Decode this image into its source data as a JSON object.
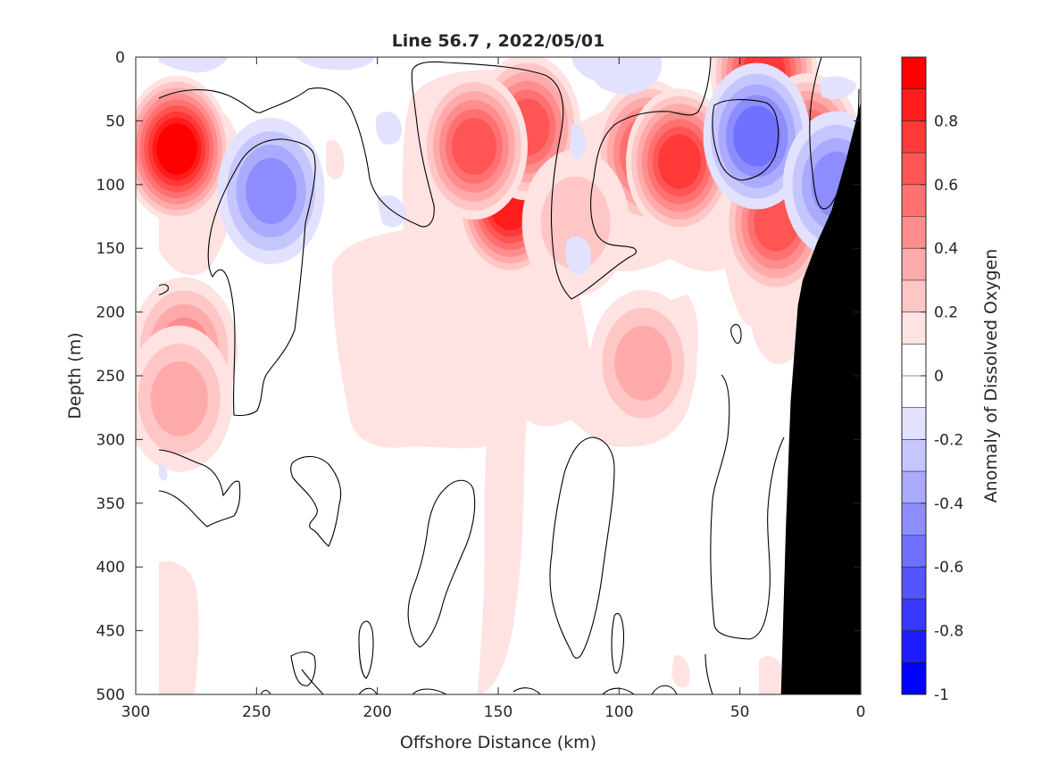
{
  "chart_data": {
    "type": "contour",
    "title": "Line 56.7 , 2022/05/01",
    "xlabel": "Offshore Distance (km)",
    "ylabel": "Depth (m)",
    "xlim": [
      300,
      0
    ],
    "ylim": [
      0,
      500
    ],
    "x_reversed": true,
    "y_reversed": true,
    "x_ticks": [
      300,
      250,
      200,
      150,
      100,
      50,
      0
    ],
    "y_ticks": [
      0,
      50,
      100,
      150,
      200,
      250,
      300,
      350,
      400,
      450,
      500
    ],
    "colorbar": {
      "label": "Anomaly of Dissolved Oxygen",
      "range": [
        -1,
        1
      ],
      "ticks": [
        0.8,
        0.6,
        0.4,
        0.2,
        0,
        -0.2,
        -0.4,
        -0.6,
        -0.8,
        -1
      ],
      "tick_labels": [
        "0.8",
        "0.6",
        "0.4",
        "0.2",
        "0",
        "-0.2",
        "-0.4",
        "-0.6",
        "-0.8",
        "-1"
      ],
      "levels": [
        {
          "from": 0.9,
          "to": 1.0,
          "color": "#ff0000"
        },
        {
          "from": 0.8,
          "to": 0.9,
          "color": "#ff1c1c"
        },
        {
          "from": 0.7,
          "to": 0.8,
          "color": "#ff3838"
        },
        {
          "from": 0.6,
          "to": 0.7,
          "color": "#ff5555"
        },
        {
          "from": 0.5,
          "to": 0.6,
          "color": "#ff7171"
        },
        {
          "from": 0.4,
          "to": 0.5,
          "color": "#ff8d8d"
        },
        {
          "from": 0.3,
          "to": 0.4,
          "color": "#ffaaaa"
        },
        {
          "from": 0.2,
          "to": 0.3,
          "color": "#ffc6c6"
        },
        {
          "from": 0.1,
          "to": 0.2,
          "color": "#ffe2e2"
        },
        {
          "from": 0.0,
          "to": 0.1,
          "color": "#ffffff"
        },
        {
          "from": -0.1,
          "to": 0.0,
          "color": "#ffffff"
        },
        {
          "from": -0.2,
          "to": -0.1,
          "color": "#e2e2ff"
        },
        {
          "from": -0.3,
          "to": -0.2,
          "color": "#c6c6ff"
        },
        {
          "from": -0.4,
          "to": -0.3,
          "color": "#aaaaff"
        },
        {
          "from": -0.5,
          "to": -0.4,
          "color": "#8d8dff"
        },
        {
          "from": -0.6,
          "to": -0.5,
          "color": "#7171ff"
        },
        {
          "from": -0.7,
          "to": -0.6,
          "color": "#5555ff"
        },
        {
          "from": -0.8,
          "to": -0.7,
          "color": "#3838ff"
        },
        {
          "from": -0.9,
          "to": -0.8,
          "color": "#1c1cff"
        },
        {
          "from": -1.0,
          "to": -0.9,
          "color": "#0000ff"
        }
      ]
    },
    "data_extent": {
      "x": [
        290,
        0
      ],
      "y": [
        0,
        500
      ]
    },
    "features": [
      {
        "type": "anomaly",
        "x": 283,
        "y": 72,
        "value": 0.9
      },
      {
        "type": "anomaly",
        "x": 280,
        "y": 230,
        "value": 0.35
      },
      {
        "type": "anomaly",
        "x": 282,
        "y": 268,
        "value": 0.32
      },
      {
        "type": "anomaly",
        "x": 244,
        "y": 105,
        "value": -0.4
      },
      {
        "type": "anomaly",
        "x": 145,
        "y": 115,
        "value": 0.75
      },
      {
        "type": "anomaly",
        "x": 138,
        "y": 55,
        "value": 0.6
      },
      {
        "type": "anomaly",
        "x": 160,
        "y": 70,
        "value": 0.55
      },
      {
        "type": "anomaly",
        "x": 88,
        "y": 75,
        "value": 0.6
      },
      {
        "type": "anomaly",
        "x": 75,
        "y": 82,
        "value": 0.65
      },
      {
        "type": "anomaly",
        "x": 40,
        "y": 12,
        "value": 0.7
      },
      {
        "type": "anomaly",
        "x": 22,
        "y": 70,
        "value": 0.6
      },
      {
        "type": "anomaly",
        "x": 35,
        "y": 130,
        "value": 0.55
      },
      {
        "type": "anomaly",
        "x": 43,
        "y": 62,
        "value": -0.45
      },
      {
        "type": "anomaly",
        "x": 10,
        "y": 100,
        "value": -0.4
      },
      {
        "type": "anomaly",
        "x": 90,
        "y": 240,
        "value": 0.3
      },
      {
        "type": "anomaly",
        "x": 118,
        "y": 130,
        "value": 0.2
      }
    ],
    "bathymetry": {
      "color": "#000000",
      "points": [
        [
          0,
          35
        ],
        [
          6,
          80
        ],
        [
          12,
          120
        ],
        [
          18,
          145
        ],
        [
          24,
          175
        ],
        [
          26,
          195
        ],
        [
          29,
          270
        ],
        [
          31,
          370
        ],
        [
          33,
          500
        ],
        [
          0,
          500
        ]
      ]
    }
  }
}
